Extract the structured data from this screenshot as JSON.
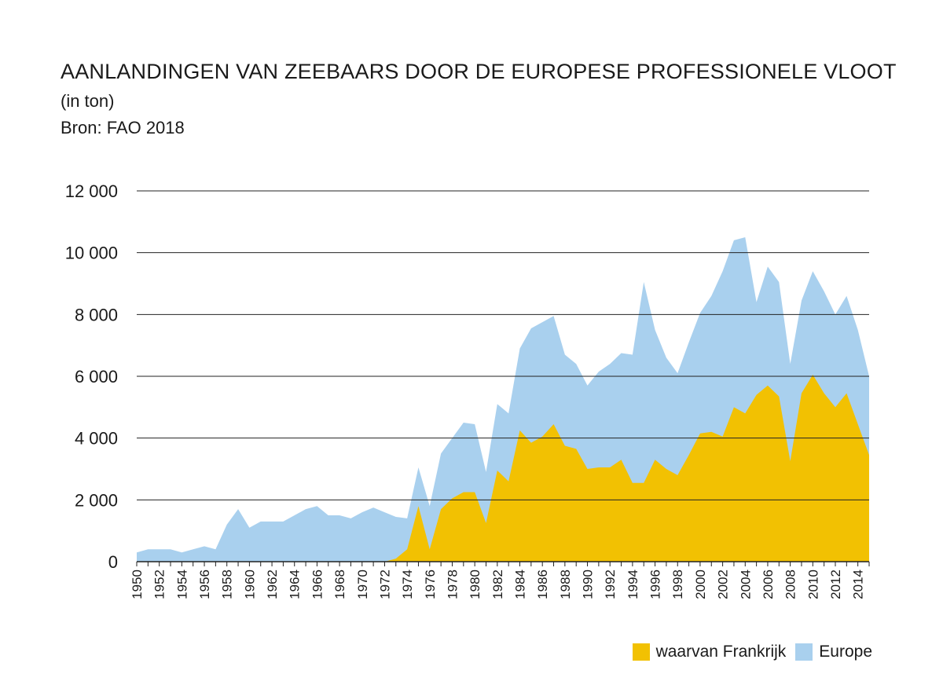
{
  "header": {
    "title": "AANLANDINGEN VAN ZEEBAARS DOOR DE EUROPESE PROFESSIONELE VLOOT",
    "subtitle": "(in ton)",
    "source": "Bron: FAO 2018"
  },
  "colors": {
    "europe": "#a9d0ee",
    "france": "#f2c102",
    "gridline": "#222222",
    "text": "#1a1a1a"
  },
  "chart_data": {
    "type": "area",
    "title": "AANLANDINGEN VAN ZEEBAARS DOOR DE EUROPESE PROFESSIONELE VLOOT",
    "ylabel": "",
    "xlabel": "",
    "ylim": [
      0,
      12000
    ],
    "xlim": [
      1950,
      2015
    ],
    "y_ticks": [
      0,
      2000,
      4000,
      6000,
      8000,
      10000,
      12000
    ],
    "y_tick_labels": [
      "0",
      "2 000",
      "4 000",
      "6 000",
      "8 000",
      "10 000",
      "12 000"
    ],
    "x_tick_labels": [
      "1950",
      "1952",
      "1954",
      "1956",
      "1958",
      "1960",
      "1962",
      "1964",
      "1966",
      "1968",
      "1970",
      "1972",
      "1974",
      "1976",
      "1978",
      "1980",
      "1982",
      "1984",
      "1986",
      "1988",
      "1990",
      "1992",
      "1994",
      "1996",
      "1998",
      "2000",
      "2002",
      "2004",
      "2006",
      "2008",
      "2010",
      "2012",
      "2014"
    ],
    "grid": "horizontal",
    "legend_position": "bottom-right",
    "x": [
      1950,
      1951,
      1952,
      1953,
      1954,
      1955,
      1956,
      1957,
      1958,
      1959,
      1960,
      1961,
      1962,
      1963,
      1964,
      1965,
      1966,
      1967,
      1968,
      1969,
      1970,
      1971,
      1972,
      1973,
      1974,
      1975,
      1976,
      1977,
      1978,
      1979,
      1980,
      1981,
      1982,
      1983,
      1984,
      1985,
      1986,
      1987,
      1988,
      1989,
      1990,
      1991,
      1992,
      1993,
      1994,
      1995,
      1996,
      1997,
      1998,
      1999,
      2000,
      2001,
      2002,
      2003,
      2004,
      2005,
      2006,
      2007,
      2008,
      2009,
      2010,
      2011,
      2012,
      2013,
      2014,
      2015
    ],
    "series": [
      {
        "name": "Europe",
        "values": [
          300,
          400,
          400,
          400,
          300,
          400,
          500,
          400,
          1200,
          1700,
          1100,
          1300,
          1300,
          1300,
          1500,
          1700,
          1800,
          1500,
          1500,
          1400,
          1600,
          1750,
          1600,
          1450,
          1400,
          3050,
          1800,
          3500,
          4000,
          4500,
          4450,
          2900,
          5100,
          4800,
          6900,
          7550,
          7750,
          7950,
          6700,
          6400,
          5700,
          6150,
          6400,
          6750,
          6700,
          9050,
          7500,
          6600,
          6100,
          7100,
          8050,
          8600,
          9400,
          10400,
          10500,
          8400,
          9550,
          9050,
          6400,
          8450,
          9400,
          8750,
          8000,
          8600,
          7500,
          6000
        ]
      },
      {
        "name": "waarvan Frankrijk",
        "values": [
          0,
          0,
          0,
          0,
          0,
          0,
          0,
          0,
          0,
          0,
          0,
          0,
          0,
          0,
          0,
          0,
          0,
          0,
          0,
          0,
          0,
          0,
          0,
          100,
          400,
          1800,
          400,
          1700,
          2050,
          2250,
          2250,
          1250,
          2950,
          2600,
          4250,
          3850,
          4050,
          4450,
          3750,
          3650,
          3000,
          3050,
          3050,
          3300,
          2550,
          2550,
          3300,
          3000,
          2800,
          3450,
          4150,
          4200,
          4050,
          5000,
          4800,
          5400,
          5700,
          5350,
          3250,
          5450,
          6050,
          5450,
          5000,
          5450,
          4450,
          3450
        ]
      }
    ]
  }
}
